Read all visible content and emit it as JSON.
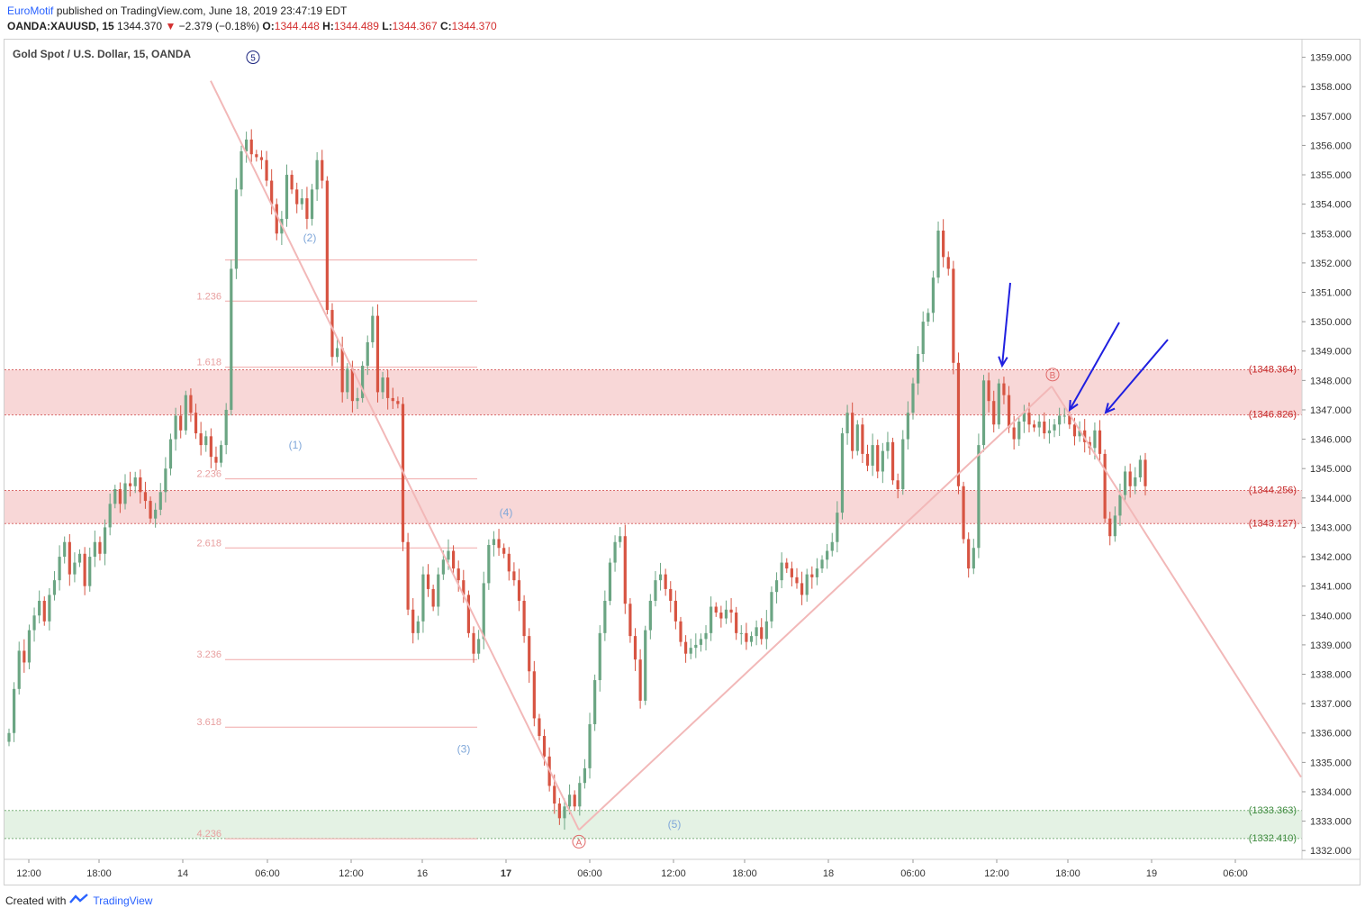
{
  "header": {
    "author": "EuroMotif",
    "published_text": "published on TradingView.com, June 18, 2019 23:47:19 EDT",
    "symbol": "OANDA:XAUUSD, 15",
    "last": "1344.370",
    "change": "−2.379 (−0.18%)",
    "o_label": "O:",
    "o": "1344.448",
    "h_label": "H:",
    "h": "1344.489",
    "l_label": "L:",
    "l": "1344.367",
    "c_label": "C:",
    "c": "1344.370"
  },
  "footer": {
    "created_with": "Created with",
    "brand": "TradingView"
  },
  "colors": {
    "up": "#6ba583",
    "down": "#d75442",
    "zone_red": "#f8d7d7",
    "zone_green": "#e4f2e4",
    "arrow": "#1f1fe0",
    "pattern": "#f2b8b8",
    "wave_blue": "#7fa7d9",
    "wave_navy": "#1a237e"
  },
  "chart_data": {
    "type": "candlestick",
    "title": "Gold Spot / U.S. Dollar, 15, OANDA",
    "ylim": [
      1331.7,
      1359.6
    ],
    "y_ticks": [
      "1332.000",
      "1333.000",
      "1334.000",
      "1335.000",
      "1336.000",
      "1337.000",
      "1338.000",
      "1339.000",
      "1340.000",
      "1341.000",
      "1342.000",
      "1343.000",
      "1344.000",
      "1345.000",
      "1346.000",
      "1347.000",
      "1348.000",
      "1349.000",
      "1350.000",
      "1351.000",
      "1352.000",
      "1353.000",
      "1354.000",
      "1355.000",
      "1356.000",
      "1357.000",
      "1358.000",
      "1359.000"
    ],
    "x_ticks": [
      {
        "label": "12:00",
        "bold": false
      },
      {
        "label": "18:00",
        "bold": false
      },
      {
        "label": "14",
        "bold": false
      },
      {
        "label": "06:00",
        "bold": false
      },
      {
        "label": "12:00",
        "bold": false
      },
      {
        "label": "16",
        "bold": false
      },
      {
        "label": "17",
        "bold": true
      },
      {
        "label": "06:00",
        "bold": false
      },
      {
        "label": "12:00",
        "bold": false
      },
      {
        "label": "18:00",
        "bold": false
      },
      {
        "label": "18",
        "bold": false
      },
      {
        "label": "06:00",
        "bold": false
      },
      {
        "label": "12:00",
        "bold": false
      },
      {
        "label": "18:00",
        "bold": false
      },
      {
        "label": "19",
        "bold": false
      },
      {
        "label": "06:00",
        "bold": false
      }
    ],
    "price_levels": [
      {
        "label": "(1348.364)",
        "value": 1348.364,
        "kind": "red"
      },
      {
        "label": "(1346.826)",
        "value": 1346.826,
        "kind": "red"
      },
      {
        "label": "(1344.256)",
        "value": 1344.256,
        "kind": "red"
      },
      {
        "label": "(1343.127)",
        "value": 1343.127,
        "kind": "red"
      },
      {
        "label": "(1333.363)",
        "value": 1333.363,
        "kind": "green"
      },
      {
        "label": "(1332.410)",
        "value": 1332.41,
        "kind": "green"
      }
    ],
    "fib_levels": [
      {
        "label": "",
        "value": 1352.1
      },
      {
        "label": "1.236",
        "value": 1350.7
      },
      {
        "label": "1.618",
        "value": 1348.45
      },
      {
        "label": "2.236",
        "value": 1344.65
      },
      {
        "label": "2.618",
        "value": 1342.3
      },
      {
        "label": "3.236",
        "value": 1338.5
      },
      {
        "label": "3.618",
        "value": 1336.2
      },
      {
        "label": "4.236",
        "value": 1332.4
      }
    ],
    "wave_labels": [
      {
        "label": "(1)",
        "value": 1345.8
      },
      {
        "label": "(2)",
        "value": 1352.85
      },
      {
        "label": "(3)",
        "value": 1335.45
      },
      {
        "label": "(4)",
        "value": 1343.5
      },
      {
        "label": "(5)",
        "value": 1332.9
      }
    ],
    "circle_labels": [
      {
        "label": "5",
        "value": 1359.0
      },
      {
        "label": "A",
        "value": 1332.3
      },
      {
        "label": "B",
        "value": 1348.2
      }
    ],
    "pattern_points": [
      {
        "x": 234,
        "value": 1358.2
      },
      {
        "x": 643,
        "value": 1332.7
      },
      {
        "x": 1168,
        "value": 1347.8
      },
      {
        "x": 1445,
        "value": 1334.5
      }
    ],
    "candles_close": [
      1336,
      1337.5,
      1338.8,
      1338.4,
      1339.5,
      1340,
      1340.5,
      1339.8,
      1340.7,
      1341.2,
      1342,
      1342.5,
      1341.4,
      1341.8,
      1342.1,
      1341,
      1342,
      1342.5,
      1342.1,
      1343,
      1343.8,
      1344.3,
      1343.8,
      1344.5,
      1344.4,
      1344.7,
      1344.2,
      1343.9,
      1343.3,
      1343.6,
      1344.2,
      1345,
      1346,
      1346.8,
      1346.3,
      1347.5,
      1346.9,
      1346.2,
      1345.8,
      1346.1,
      1345.4,
      1345.2,
      1345.8,
      1347,
      1351.8,
      1354.5,
      1355.8,
      1356.2,
      1355.7,
      1355.6,
      1355.5,
      1354.8,
      1354,
      1353,
      1353.5,
      1355,
      1354.5,
      1354,
      1354.2,
      1353.5,
      1354.5,
      1355.5,
      1354.8,
      1350.4,
      1348.8,
      1349.1,
      1347.6,
      1348.4,
      1347.3,
      1347.4,
      1348.5,
      1349.3,
      1350.2,
      1347.6,
      1348.1,
      1347.4,
      1347.3,
      1347.2,
      1342.5,
      1340.2,
      1339.4,
      1339.8,
      1341.4,
      1340.9,
      1340.3,
      1341.4,
      1341.9,
      1342.2,
      1341.6,
      1341.2,
      1340.7,
      1339.4,
      1338.7,
      1339.2,
      1341.1,
      1342.4,
      1342.6,
      1342.3,
      1342.1,
      1341.5,
      1341.2,
      1340.5,
      1339.3,
      1338.1,
      1336.5,
      1335.9,
      1335.2,
      1334.2,
      1333.6,
      1333.1,
      1333.5,
      1333.9,
      1333.5,
      1334.3,
      1334.8,
      1336.3,
      1337.8,
      1339.4,
      1340.5,
      1341.8,
      1342.5,
      1342.7,
      1340.4,
      1339.3,
      1338.5,
      1337.1,
      1339.5,
      1340.5,
      1341.2,
      1341.4,
      1340.9,
      1340.5,
      1339.8,
      1339.1,
      1338.7,
      1338.9,
      1339,
      1339.2,
      1339.4,
      1340.3,
      1340.1,
      1339.9,
      1340.2,
      1340.1,
      1339.4,
      1339.4,
      1339.1,
      1339.3,
      1339.6,
      1339.2,
      1339.8,
      1340.8,
      1341.2,
      1341.8,
      1341.6,
      1341.3,
      1341.1,
      1340.7,
      1341.4,
      1341.3,
      1341.6,
      1341.9,
      1342.2,
      1342.5,
      1343.5,
      1346.2,
      1346.9,
      1345.6,
      1346.5,
      1345.5,
      1345.1,
      1345.8,
      1344.9,
      1345.6,
      1345.9,
      1344.6,
      1344.3,
      1346,
      1346.9,
      1347.9,
      1348.9,
      1350,
      1350.3,
      1351.5,
      1353.1,
      1352.2,
      1351.8,
      1348.6,
      1344.4,
      1342.6,
      1341.6,
      1342.3,
      1345.8,
      1348,
      1347.3,
      1346.5,
      1347.9,
      1347.5,
      1346.4,
      1346,
      1346.6,
      1346.9,
      1346.5,
      1346.4,
      1346.6,
      1346.2,
      1346.3,
      1346.5,
      1346.8,
      1346.8,
      1346.5,
      1346.1,
      1346.3,
      1345.9,
      1345.7,
      1346.3,
      1345.5,
      1343.3,
      1342.7,
      1343.4,
      1344.1,
      1344.9,
      1344.4,
      1344.7,
      1345.3,
      1344.4
    ]
  },
  "annotations": {
    "arrows": [
      {
        "from": [
          1122,
          314
        ],
        "to": [
          1113,
          406
        ]
      },
      {
        "from": [
          1243,
          358
        ],
        "to": [
          1188,
          455
        ]
      },
      {
        "from": [
          1297,
          377
        ],
        "to": [
          1228,
          458
        ]
      }
    ]
  }
}
